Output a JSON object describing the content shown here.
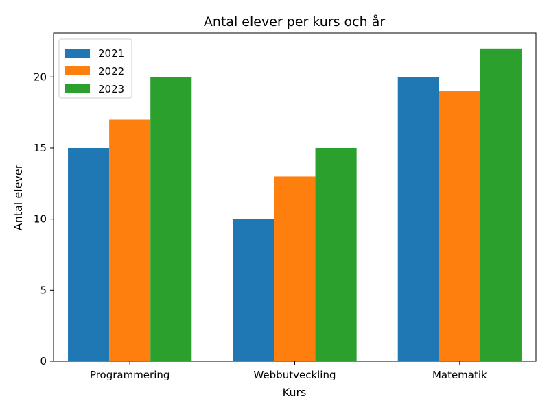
{
  "chart_data": {
    "type": "bar",
    "title": "Antal elever per kurs och år",
    "xlabel": "Kurs",
    "ylabel": "Antal elever",
    "categories": [
      "Programmering",
      "Webbutveckling",
      "Matematik"
    ],
    "series": [
      {
        "name": "2021",
        "values": [
          15,
          10,
          20
        ],
        "color": "#1f77b4"
      },
      {
        "name": "2022",
        "values": [
          17,
          13,
          19
        ],
        "color": "#ff7f0e"
      },
      {
        "name": "2023",
        "values": [
          20,
          15,
          22
        ],
        "color": "#2ca02c"
      }
    ],
    "ylim": [
      0,
      23.1
    ],
    "yticks": [
      0,
      5,
      10,
      15,
      20
    ],
    "grid": false,
    "legend_position": "top-left"
  }
}
